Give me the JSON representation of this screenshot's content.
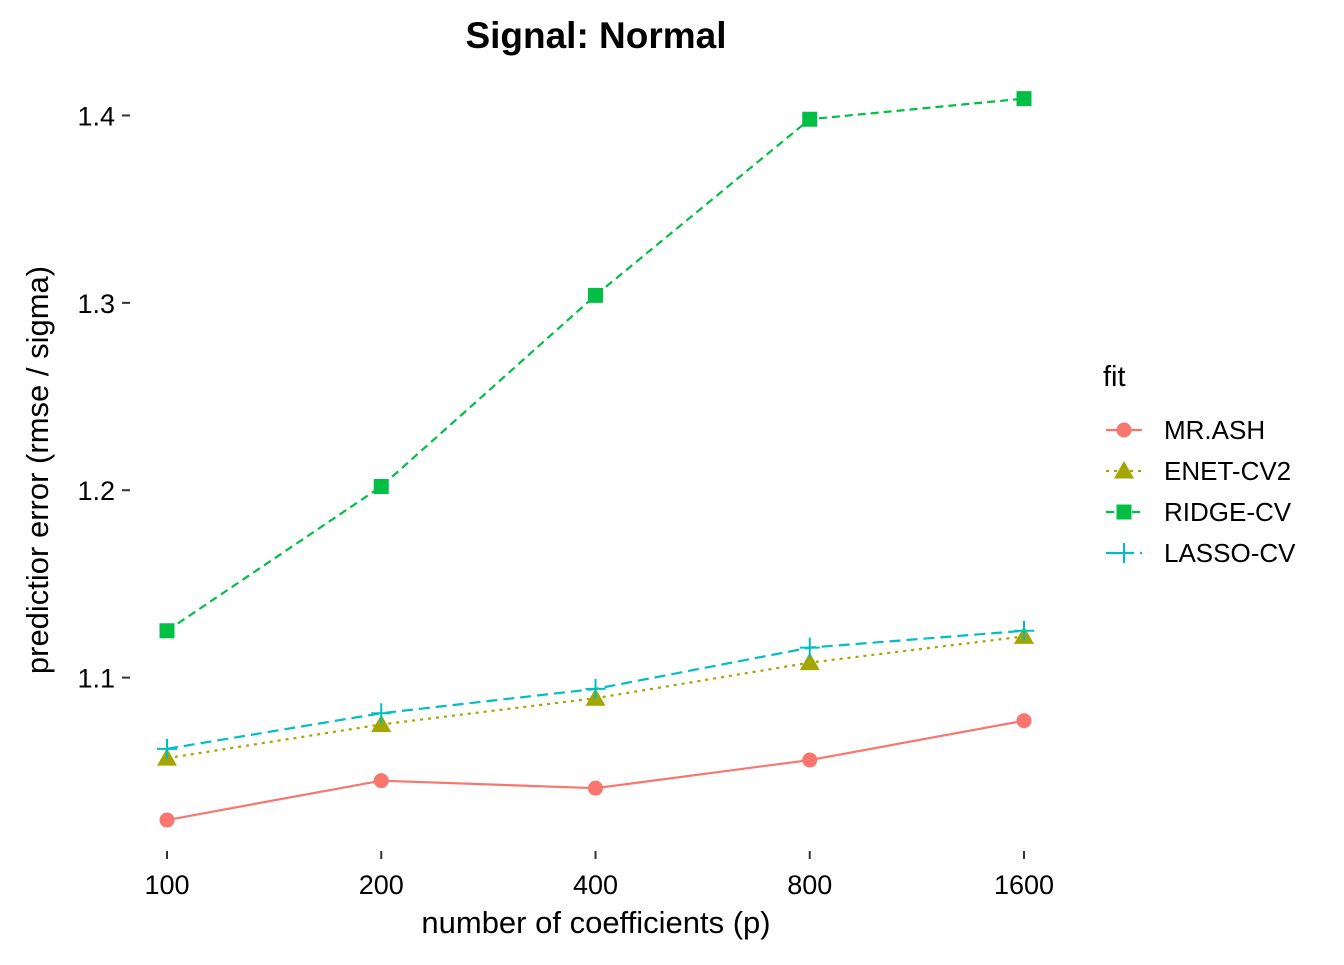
{
  "chart_data": {
    "type": "line",
    "title": "Signal: Normal",
    "xlabel": "number of coefficients (p)",
    "ylabel": "predictior error (rmse / sigma)",
    "x_scale": "log2",
    "categories": [
      100,
      200,
      400,
      800,
      1600
    ],
    "y_ticks": [
      1.1,
      1.2,
      1.3,
      1.4
    ],
    "ylim": [
      1.008,
      1.42
    ],
    "grid": false,
    "legend": {
      "title": "fit",
      "position": "right"
    },
    "series": [
      {
        "name": "MR.ASH",
        "color": "#F8766D",
        "marker": "circle",
        "dash": "solid",
        "values": [
          1.024,
          1.045,
          1.041,
          1.056,
          1.077
        ]
      },
      {
        "name": "ENET-CV2",
        "color": "#A3A500",
        "marker": "triangle",
        "dash": "dotted",
        "values": [
          1.057,
          1.075,
          1.089,
          1.108,
          1.122
        ]
      },
      {
        "name": "RIDGE-CV",
        "color": "#00BF44",
        "marker": "square",
        "dash": "dashed",
        "values": [
          1.125,
          1.202,
          1.304,
          1.398,
          1.409
        ]
      },
      {
        "name": "LASSO-CV",
        "color": "#00BFC4",
        "marker": "plus",
        "dash": "longdash",
        "values": [
          1.062,
          1.081,
          1.094,
          1.116,
          1.125
        ]
      }
    ]
  }
}
